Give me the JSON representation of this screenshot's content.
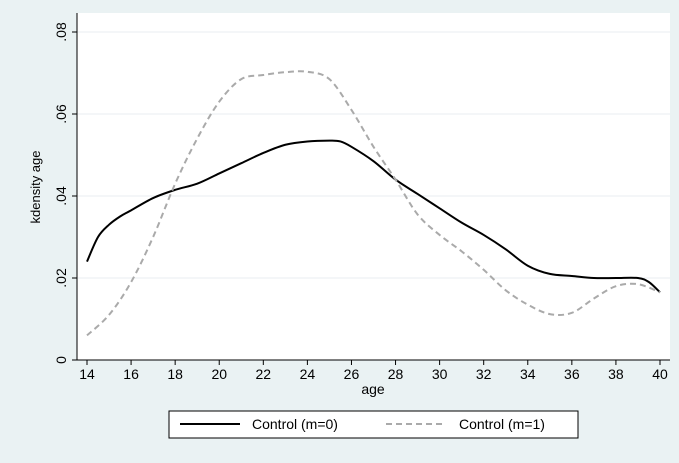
{
  "chart_data": {
    "type": "line",
    "title": "",
    "xlabel": "age",
    "ylabel": "kdensity age",
    "xlim": [
      14,
      40
    ],
    "ylim": [
      0,
      0.08
    ],
    "x_ticks": [
      14,
      16,
      18,
      20,
      22,
      24,
      26,
      28,
      30,
      32,
      34,
      36,
      38,
      40
    ],
    "y_ticks": [
      0,
      0.02,
      0.04,
      0.06,
      0.08
    ],
    "y_tick_labels": [
      "0",
      ".02",
      ".04",
      ".06",
      ".08"
    ],
    "grid": "horizontal",
    "legend_position": "bottom",
    "series": [
      {
        "name": "Control (m=0)",
        "color": "#000000",
        "style": "solid",
        "x": [
          14,
          14.5,
          15,
          15.5,
          16,
          17,
          18,
          19,
          20,
          21,
          22,
          23,
          24,
          25,
          25.5,
          26,
          27,
          28,
          29,
          30,
          31,
          32,
          33,
          34,
          35,
          36,
          37,
          38,
          39,
          39.5,
          40
        ],
        "y": [
          0.024,
          0.03,
          0.033,
          0.035,
          0.0365,
          0.0395,
          0.0415,
          0.043,
          0.0455,
          0.048,
          0.0505,
          0.0525,
          0.0533,
          0.0535,
          0.0533,
          0.052,
          0.0485,
          0.044,
          0.0405,
          0.037,
          0.0335,
          0.0305,
          0.027,
          0.023,
          0.021,
          0.0205,
          0.02,
          0.02,
          0.02,
          0.019,
          0.0165
        ]
      },
      {
        "name": "Control (m=1)",
        "color": "#aaaaaa",
        "style": "dashed",
        "x": [
          14,
          15,
          16,
          17,
          18,
          19,
          20,
          21,
          22,
          23,
          24,
          25,
          26,
          27,
          28,
          29,
          30,
          31,
          32,
          33,
          34,
          35,
          36,
          37,
          38,
          39,
          40
        ],
        "y": [
          0.006,
          0.011,
          0.019,
          0.03,
          0.043,
          0.054,
          0.063,
          0.0685,
          0.0695,
          0.0702,
          0.0703,
          0.0685,
          0.061,
          0.052,
          0.044,
          0.0355,
          0.0305,
          0.0265,
          0.022,
          0.017,
          0.0135,
          0.0112,
          0.0115,
          0.015,
          0.018,
          0.0185,
          0.0165
        ]
      }
    ]
  }
}
